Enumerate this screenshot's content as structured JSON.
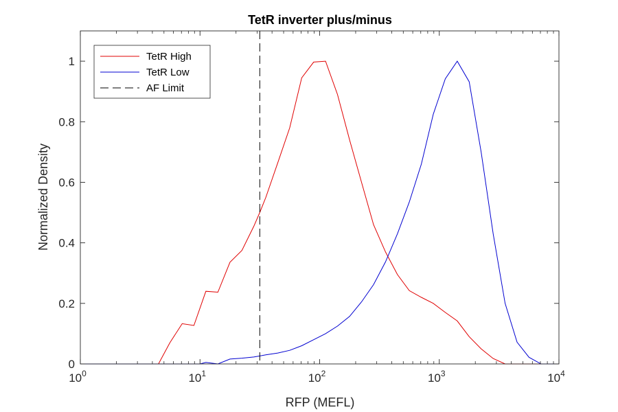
{
  "chart_data": {
    "type": "line",
    "title": "TetR inverter plus/minus",
    "xlabel": "RFP (MEFL)",
    "ylabel": "Normalized Density",
    "xscale": "log",
    "xlim": [
      1,
      10000
    ],
    "ylim": [
      0,
      1.1
    ],
    "xticks": [
      {
        "base": "10",
        "exp": "0",
        "value": 1
      },
      {
        "base": "10",
        "exp": "1",
        "value": 10
      },
      {
        "base": "10",
        "exp": "2",
        "value": 100
      },
      {
        "base": "10",
        "exp": "3",
        "value": 1000
      },
      {
        "base": "10",
        "exp": "4",
        "value": 10000
      }
    ],
    "yticks": [
      "0",
      "0.2",
      "0.4",
      "0.6",
      "0.8",
      "1"
    ],
    "grid": false,
    "legend_position": "top-left",
    "series": [
      {
        "name": "TetR High",
        "color": "#e00000",
        "points": [
          [
            1,
            0
          ],
          [
            2,
            0
          ],
          [
            3,
            0
          ],
          [
            4.5,
            0
          ],
          [
            5.6,
            0.07
          ],
          [
            7.1,
            0.133
          ],
          [
            8.9,
            0.127
          ],
          [
            11.2,
            0.24
          ],
          [
            14.1,
            0.237
          ],
          [
            17.8,
            0.336
          ],
          [
            22.4,
            0.375
          ],
          [
            28.2,
            0.455
          ],
          [
            31.6,
            0.5
          ],
          [
            35.5,
            0.55
          ],
          [
            44.7,
            0.665
          ],
          [
            56.2,
            0.78
          ],
          [
            70.8,
            0.945
          ],
          [
            89.1,
            0.997
          ],
          [
            112,
            1.0
          ],
          [
            141,
            0.89
          ],
          [
            178,
            0.74
          ],
          [
            224,
            0.6
          ],
          [
            282,
            0.46
          ],
          [
            355,
            0.37
          ],
          [
            447,
            0.295
          ],
          [
            562,
            0.242
          ],
          [
            708,
            0.22
          ],
          [
            891,
            0.2
          ],
          [
            1122,
            0.17
          ],
          [
            1413,
            0.142
          ],
          [
            1778,
            0.09
          ],
          [
            2239,
            0.05
          ],
          [
            2818,
            0.018
          ],
          [
            3548,
            0.0
          ],
          [
            5000,
            0
          ],
          [
            10000,
            0
          ]
        ]
      },
      {
        "name": "TetR Low",
        "color": "#0000d0",
        "points": [
          [
            1,
            0
          ],
          [
            5,
            0
          ],
          [
            10,
            0
          ],
          [
            11.2,
            0.005
          ],
          [
            14.1,
            0.0
          ],
          [
            17.8,
            0.016
          ],
          [
            22.4,
            0.019
          ],
          [
            28.2,
            0.023
          ],
          [
            35.5,
            0.03
          ],
          [
            44.7,
            0.036
          ],
          [
            56.2,
            0.045
          ],
          [
            70.8,
            0.06
          ],
          [
            89.1,
            0.08
          ],
          [
            112,
            0.1
          ],
          [
            141,
            0.125
          ],
          [
            178,
            0.157
          ],
          [
            224,
            0.205
          ],
          [
            282,
            0.262
          ],
          [
            355,
            0.337
          ],
          [
            447,
            0.43
          ],
          [
            562,
            0.535
          ],
          [
            708,
            0.66
          ],
          [
            891,
            0.825
          ],
          [
            1122,
            0.942
          ],
          [
            1413,
            1.0
          ],
          [
            1778,
            0.932
          ],
          [
            2239,
            0.7
          ],
          [
            2818,
            0.43
          ],
          [
            3548,
            0.2
          ],
          [
            4467,
            0.072
          ],
          [
            5623,
            0.022
          ],
          [
            7079,
            0.0
          ],
          [
            8913,
            0.0
          ],
          [
            10000,
            0
          ]
        ]
      }
    ],
    "annotations": [
      {
        "name": "AF Limit",
        "type": "vline",
        "x": 31.6,
        "color": "#000000",
        "style": "dashed"
      }
    ]
  }
}
